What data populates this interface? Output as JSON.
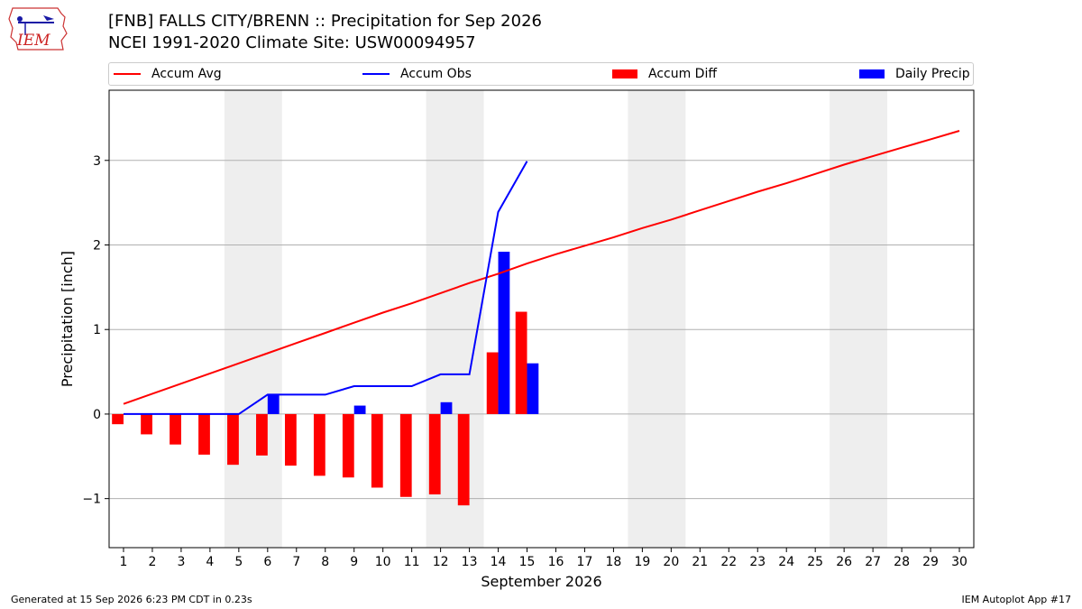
{
  "header": {
    "title_line1": "[FNB] FALLS CITY/BRENN :: Precipitation for Sep 2026",
    "title_line2": "NCEI 1991-2020 Climate Site: USW00094957",
    "logo_text": "IEM"
  },
  "legend": {
    "items": [
      {
        "label": "Accum Avg",
        "color": "#ff0000",
        "kind": "line"
      },
      {
        "label": "Accum Obs",
        "color": "#0000ff",
        "kind": "line"
      },
      {
        "label": "Accum Diff",
        "color": "#ff0000",
        "kind": "box"
      },
      {
        "label": "Daily Precip",
        "color": "#0000ff",
        "kind": "box"
      }
    ]
  },
  "chart_data": {
    "type": "bar",
    "xlabel": "September 2026",
    "ylabel": "Precipitation [inch]",
    "x_ticks": [
      1,
      2,
      3,
      4,
      5,
      6,
      7,
      8,
      9,
      10,
      11,
      12,
      13,
      14,
      15,
      16,
      17,
      18,
      19,
      20,
      21,
      22,
      23,
      24,
      25,
      26,
      27,
      28,
      29,
      30
    ],
    "y_ticks": [
      -1,
      0,
      1,
      2,
      3
    ],
    "y_tick_labels": [
      "−1",
      "0",
      "1",
      "2",
      "3"
    ],
    "xlim": [
      0.5,
      30.5
    ],
    "ylim": [
      -1.58,
      3.83
    ],
    "grid": "horizontal",
    "weekend_shading": [
      [
        5,
        6
      ],
      [
        12,
        13
      ],
      [
        19,
        20
      ],
      [
        26,
        27
      ]
    ],
    "accum_avg": {
      "name": "Accum Avg",
      "color": "#ff0000",
      "x": [
        1,
        2,
        3,
        4,
        5,
        6,
        7,
        8,
        9,
        10,
        11,
        12,
        13,
        14,
        15,
        16,
        17,
        18,
        19,
        20,
        21,
        22,
        23,
        24,
        25,
        26,
        27,
        28,
        29,
        30
      ],
      "values": [
        0.12,
        0.24,
        0.36,
        0.48,
        0.6,
        0.72,
        0.84,
        0.96,
        1.08,
        1.2,
        1.31,
        1.43,
        1.55,
        1.66,
        1.78,
        1.89,
        1.99,
        2.09,
        2.2,
        2.3,
        2.41,
        2.52,
        2.63,
        2.73,
        2.84,
        2.95,
        3.05,
        3.15,
        3.25,
        3.35
      ]
    },
    "accum_obs": {
      "name": "Accum Obs",
      "color": "#0000ff",
      "x": [
        1,
        2,
        3,
        4,
        5,
        6,
        7,
        8,
        9,
        10,
        11,
        12,
        13,
        14,
        15
      ],
      "values": [
        0,
        0,
        0,
        0,
        0,
        0.23,
        0.23,
        0.23,
        0.33,
        0.33,
        0.33,
        0.47,
        0.47,
        2.39,
        2.99
      ]
    },
    "accum_diff": {
      "name": "Accum Diff",
      "color": "#ff0000",
      "x": [
        1,
        2,
        3,
        4,
        5,
        6,
        7,
        8,
        9,
        10,
        11,
        12,
        13,
        14,
        15
      ],
      "values": [
        -0.12,
        -0.24,
        -0.36,
        -0.48,
        -0.6,
        -0.49,
        -0.61,
        -0.73,
        -0.75,
        -0.87,
        -0.98,
        -0.95,
        -1.08,
        0.73,
        1.21
      ]
    },
    "daily_precip": {
      "name": "Daily Precip",
      "color": "#0000ff",
      "x": [
        1,
        2,
        3,
        4,
        5,
        6,
        7,
        8,
        9,
        10,
        11,
        12,
        13,
        14,
        15
      ],
      "values": [
        0,
        0,
        0,
        0,
        0,
        0.23,
        0,
        0,
        0.1,
        0,
        0,
        0.14,
        0,
        1.92,
        0.6
      ]
    }
  },
  "footer": {
    "left": "Generated at 15 Sep 2026 6:23 PM CDT in 0.23s",
    "right": "IEM Autoplot App #17"
  }
}
